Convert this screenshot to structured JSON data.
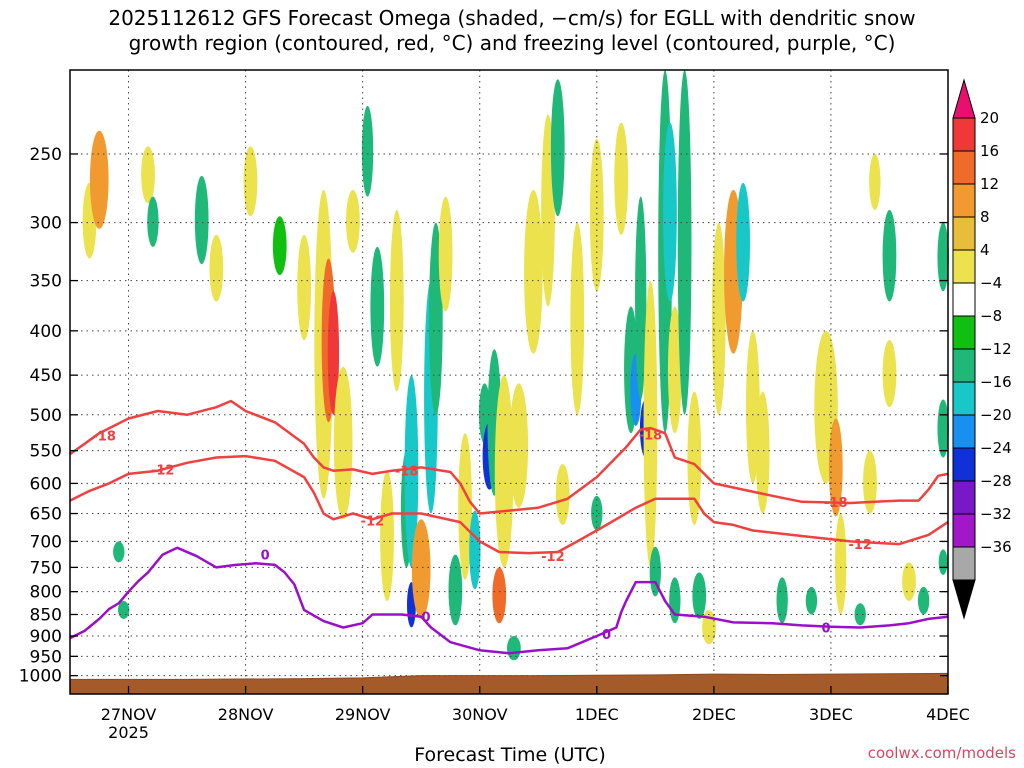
{
  "chart_data": {
    "type": "heatmap",
    "title_line1": "2025112612 GFS Forecast Omega (shaded, −cm/s) for EGLL with dendritic snow",
    "title_line2": "growth region (contoured, red, °C) and freezing level (contoured, purple, °C)",
    "xlabel": "Forecast Time (UTC)",
    "credit": "coolwx.com/models",
    "y_axis": {
      "scale": "pressure (hPa, inverted)",
      "ylim": [
        1050,
        200
      ],
      "ticks": [
        250,
        300,
        350,
        400,
        450,
        500,
        550,
        600,
        650,
        700,
        750,
        800,
        850,
        900,
        950,
        1000
      ]
    },
    "x_axis": {
      "unit": "hours from 2025-11-26 12 UTC",
      "xlim": [
        0,
        180
      ],
      "ticks": [
        {
          "x": 12,
          "label": "27NOV",
          "sub": "2025"
        },
        {
          "x": 36,
          "label": "28NOV",
          "sub": ""
        },
        {
          "x": 60,
          "label": "29NOV",
          "sub": ""
        },
        {
          "x": 84,
          "label": "30NOV",
          "sub": ""
        },
        {
          "x": 108,
          "label": "1DEC",
          "sub": ""
        },
        {
          "x": 132,
          "label": "2DEC",
          "sub": ""
        },
        {
          "x": 156,
          "label": "3DEC",
          "sub": ""
        },
        {
          "x": 180,
          "label": "4DEC",
          "sub": ""
        }
      ]
    },
    "grid": true,
    "colorbar": {
      "labels": [
        "20",
        "16",
        "12",
        "8",
        "4",
        "−4",
        "−8",
        "−12",
        "−16",
        "−20",
        "−24",
        "−28",
        "−32",
        "−36"
      ],
      "colors": [
        "#e8106e",
        "#f03838",
        "#f06a2a",
        "#f09a30",
        "#e8bd3a",
        "#ebe24d",
        "#ffffff",
        "#10c010",
        "#20b878",
        "#18c8c8",
        "#1890f0",
        "#1030d8",
        "#7818c8",
        "#a018c8",
        "#a8a8a8",
        "#000000"
      ]
    },
    "shading_patches": [
      {
        "x": 4,
        "p": 300,
        "w": 2,
        "h": 60,
        "v": 6
      },
      {
        "x": 6,
        "p": 270,
        "w": 3,
        "h": 70,
        "v": 10
      },
      {
        "x": 16,
        "p": 265,
        "w": 2,
        "h": 40,
        "v": 5
      },
      {
        "x": 17,
        "p": 300,
        "w": 1.5,
        "h": 40,
        "v": -8
      },
      {
        "x": 10,
        "p": 720,
        "w": 1.5,
        "h": 40,
        "v": -10
      },
      {
        "x": 11,
        "p": 840,
        "w": 1.5,
        "h": 40,
        "v": -8
      },
      {
        "x": 27,
        "p": 300,
        "w": 2,
        "h": 70,
        "v": -8
      },
      {
        "x": 30,
        "p": 340,
        "w": 2,
        "h": 60,
        "v": 5
      },
      {
        "x": 37,
        "p": 270,
        "w": 2,
        "h": 50,
        "v": 5
      },
      {
        "x": 43,
        "p": 320,
        "w": 2,
        "h": 50,
        "v": -6
      },
      {
        "x": 48,
        "p": 360,
        "w": 2,
        "h": 100,
        "v": 6
      },
      {
        "x": 52,
        "p": 450,
        "w": 3,
        "h": 350,
        "v": 7
      },
      {
        "x": 53,
        "p": 420,
        "w": 2,
        "h": 180,
        "v": 12
      },
      {
        "x": 54,
        "p": 430,
        "w": 1.5,
        "h": 140,
        "v": 16
      },
      {
        "x": 56,
        "p": 550,
        "w": 3,
        "h": 220,
        "v": 6
      },
      {
        "x": 58,
        "p": 300,
        "w": 2,
        "h": 50,
        "v": 5
      },
      {
        "x": 61,
        "p": 250,
        "w": 1.5,
        "h": 60,
        "v": -8
      },
      {
        "x": 63,
        "p": 380,
        "w": 2,
        "h": 120,
        "v": -8
      },
      {
        "x": 65,
        "p": 700,
        "w": 2,
        "h": 240,
        "v": 5
      },
      {
        "x": 67,
        "p": 380,
        "w": 2,
        "h": 180,
        "v": 6
      },
      {
        "x": 69,
        "p": 650,
        "w": 1.5,
        "h": 200,
        "v": -8
      },
      {
        "x": 70,
        "p": 600,
        "w": 2,
        "h": 300,
        "v": -14
      },
      {
        "x": 70,
        "p": 830,
        "w": 1,
        "h": 100,
        "v": -22
      },
      {
        "x": 72,
        "p": 760,
        "w": 3,
        "h": 200,
        "v": 8
      },
      {
        "x": 74,
        "p": 500,
        "w": 2,
        "h": 300,
        "v": -12
      },
      {
        "x": 75,
        "p": 400,
        "w": 2,
        "h": 200,
        "v": -8
      },
      {
        "x": 77,
        "p": 330,
        "w": 2,
        "h": 100,
        "v": 5
      },
      {
        "x": 79,
        "p": 800,
        "w": 2,
        "h": 150,
        "v": -8
      },
      {
        "x": 81,
        "p": 650,
        "w": 2,
        "h": 250,
        "v": 6
      },
      {
        "x": 83,
        "p": 720,
        "w": 1.5,
        "h": 150,
        "v": -14
      },
      {
        "x": 85,
        "p": 500,
        "w": 1.5,
        "h": 80,
        "v": -8
      },
      {
        "x": 86,
        "p": 560,
        "w": 2,
        "h": 100,
        "v": -20
      },
      {
        "x": 87,
        "p": 520,
        "w": 2,
        "h": 200,
        "v": -10
      },
      {
        "x": 89,
        "p": 600,
        "w": 3,
        "h": 300,
        "v": 6
      },
      {
        "x": 88,
        "p": 810,
        "w": 2,
        "h": 120,
        "v": 12
      },
      {
        "x": 91,
        "p": 930,
        "w": 2,
        "h": 60,
        "v": -8
      },
      {
        "x": 92,
        "p": 550,
        "w": 3,
        "h": 180,
        "v": 7
      },
      {
        "x": 95,
        "p": 350,
        "w": 3,
        "h": 150,
        "v": 5
      },
      {
        "x": 98,
        "p": 300,
        "w": 2,
        "h": 150,
        "v": 5
      },
      {
        "x": 100,
        "p": 250,
        "w": 2,
        "h": 90,
        "v": -8
      },
      {
        "x": 101,
        "p": 620,
        "w": 2,
        "h": 100,
        "v": 5
      },
      {
        "x": 104,
        "p": 400,
        "w": 2,
        "h": 200,
        "v": 5
      },
      {
        "x": 108,
        "p": 300,
        "w": 2,
        "h": 120,
        "v": 5
      },
      {
        "x": 108,
        "p": 650,
        "w": 1.5,
        "h": 60,
        "v": -8
      },
      {
        "x": 113,
        "p": 270,
        "w": 2,
        "h": 80,
        "v": 5
      },
      {
        "x": 115,
        "p": 450,
        "w": 2,
        "h": 150,
        "v": -8
      },
      {
        "x": 116,
        "p": 470,
        "w": 1.5,
        "h": 90,
        "v": -18
      },
      {
        "x": 118,
        "p": 520,
        "w": 1.5,
        "h": 80,
        "v": -22
      },
      {
        "x": 117,
        "p": 380,
        "w": 1.5,
        "h": 200,
        "v": -10
      },
      {
        "x": 119,
        "p": 550,
        "w": 2,
        "h": 400,
        "v": 5
      },
      {
        "x": 120,
        "p": 760,
        "w": 1.5,
        "h": 100,
        "v": -8
      },
      {
        "x": 122,
        "p": 350,
        "w": 2,
        "h": 350,
        "v": -10
      },
      {
        "x": 123,
        "p": 300,
        "w": 2,
        "h": 140,
        "v": -14
      },
      {
        "x": 124,
        "p": 450,
        "w": 2,
        "h": 150,
        "v": 5
      },
      {
        "x": 124,
        "p": 820,
        "w": 1.5,
        "h": 100,
        "v": -8
      },
      {
        "x": 126,
        "p": 350,
        "w": 2,
        "h": 300,
        "v": -8
      },
      {
        "x": 128,
        "p": 570,
        "w": 2,
        "h": 200,
        "v": 5
      },
      {
        "x": 129,
        "p": 810,
        "w": 2,
        "h": 100,
        "v": -8
      },
      {
        "x": 131,
        "p": 880,
        "w": 2,
        "h": 80,
        "v": 5
      },
      {
        "x": 133,
        "p": 400,
        "w": 2,
        "h": 200,
        "v": 5
      },
      {
        "x": 136,
        "p": 350,
        "w": 3,
        "h": 150,
        "v": 8
      },
      {
        "x": 138,
        "p": 320,
        "w": 2,
        "h": 100,
        "v": -12
      },
      {
        "x": 140,
        "p": 500,
        "w": 2,
        "h": 200,
        "v": 6
      },
      {
        "x": 142,
        "p": 560,
        "w": 2,
        "h": 180,
        "v": 5
      },
      {
        "x": 146,
        "p": 820,
        "w": 1.5,
        "h": 100,
        "v": -8
      },
      {
        "x": 152,
        "p": 820,
        "w": 1.5,
        "h": 60,
        "v": -8
      },
      {
        "x": 155,
        "p": 500,
        "w": 4,
        "h": 200,
        "v": 5
      },
      {
        "x": 157,
        "p": 580,
        "w": 2,
        "h": 150,
        "v": 8
      },
      {
        "x": 158,
        "p": 750,
        "w": 1.5,
        "h": 200,
        "v": 5
      },
      {
        "x": 162,
        "p": 850,
        "w": 1.5,
        "h": 50,
        "v": -8
      },
      {
        "x": 164,
        "p": 600,
        "w": 2,
        "h": 100,
        "v": 5
      },
      {
        "x": 165,
        "p": 270,
        "w": 1.5,
        "h": 40,
        "v": 5
      },
      {
        "x": 168,
        "p": 330,
        "w": 2,
        "h": 80,
        "v": -8
      },
      {
        "x": 168,
        "p": 450,
        "w": 2,
        "h": 80,
        "v": 5
      },
      {
        "x": 172,
        "p": 780,
        "w": 2,
        "h": 80,
        "v": 5
      },
      {
        "x": 175,
        "p": 820,
        "w": 1.5,
        "h": 60,
        "v": -8
      },
      {
        "x": 179,
        "p": 330,
        "w": 1.5,
        "h": 60,
        "v": -8
      },
      {
        "x": 179,
        "p": 520,
        "w": 1.5,
        "h": 80,
        "v": -8
      },
      {
        "x": 179,
        "p": 740,
        "w": 1,
        "h": 50,
        "v": -8
      }
    ],
    "surface_pressure": [
      [
        0,
        1010
      ],
      [
        24,
        1010
      ],
      [
        48,
        1008
      ],
      [
        60,
        1006
      ],
      [
        72,
        1000
      ],
      [
        96,
        1000
      ],
      [
        120,
        998
      ],
      [
        132,
        996
      ],
      [
        144,
        997
      ],
      [
        168,
        995
      ],
      [
        180,
        994
      ]
    ],
    "contours": [
      {
        "name": "-18",
        "color": "#f04040",
        "labels": [
          {
            "text": "-18",
            "x": 7,
            "p": 528
          },
          {
            "text": "-18",
            "x": 69,
            "p": 580
          },
          {
            "text": "-18",
            "x": 119,
            "p": 527
          },
          {
            "text": "-18",
            "x": 157,
            "p": 630
          }
        ],
        "points": [
          [
            0,
            555
          ],
          [
            3,
            540
          ],
          [
            6,
            525
          ],
          [
            12,
            505
          ],
          [
            18,
            495
          ],
          [
            24,
            500
          ],
          [
            30,
            490
          ],
          [
            33,
            482
          ],
          [
            36,
            495
          ],
          [
            42,
            510
          ],
          [
            48,
            540
          ],
          [
            50,
            560
          ],
          [
            52,
            575
          ],
          [
            54,
            580
          ],
          [
            58,
            578
          ],
          [
            62,
            585
          ],
          [
            66,
            580
          ],
          [
            72,
            575
          ],
          [
            78,
            582
          ],
          [
            80,
            600
          ],
          [
            82,
            630
          ],
          [
            84,
            650
          ],
          [
            90,
            645
          ],
          [
            96,
            640
          ],
          [
            102,
            625
          ],
          [
            108,
            590
          ],
          [
            114,
            545
          ],
          [
            117,
            520
          ],
          [
            119,
            518
          ],
          [
            122,
            525
          ],
          [
            124,
            560
          ],
          [
            128,
            570
          ],
          [
            132,
            600
          ],
          [
            138,
            610
          ],
          [
            144,
            620
          ],
          [
            150,
            630
          ],
          [
            160,
            632
          ],
          [
            170,
            628
          ],
          [
            174,
            628
          ],
          [
            176,
            610
          ],
          [
            178,
            588
          ],
          [
            180,
            585
          ]
        ]
      },
      {
        "name": "-12",
        "color": "#f04040",
        "labels": [
          {
            "text": "-12",
            "x": 19,
            "p": 578
          },
          {
            "text": "-12",
            "x": 62,
            "p": 662
          },
          {
            "text": "-12",
            "x": 99,
            "p": 728
          },
          {
            "text": "-12",
            "x": 162,
            "p": 705
          }
        ],
        "points": [
          [
            0,
            628
          ],
          [
            4,
            612
          ],
          [
            8,
            600
          ],
          [
            12,
            585
          ],
          [
            18,
            580
          ],
          [
            24,
            568
          ],
          [
            30,
            560
          ],
          [
            36,
            558
          ],
          [
            42,
            565
          ],
          [
            48,
            590
          ],
          [
            50,
            615
          ],
          [
            52,
            650
          ],
          [
            54,
            660
          ],
          [
            58,
            650
          ],
          [
            62,
            660
          ],
          [
            66,
            650
          ],
          [
            72,
            650
          ],
          [
            80,
            665
          ],
          [
            84,
            700
          ],
          [
            88,
            720
          ],
          [
            94,
            722
          ],
          [
            100,
            720
          ],
          [
            104,
            700
          ],
          [
            110,
            670
          ],
          [
            116,
            640
          ],
          [
            120,
            625
          ],
          [
            128,
            625
          ],
          [
            130,
            650
          ],
          [
            132,
            665
          ],
          [
            136,
            670
          ],
          [
            140,
            680
          ],
          [
            150,
            690
          ],
          [
            160,
            700
          ],
          [
            170,
            705
          ],
          [
            176,
            688
          ],
          [
            180,
            665
          ]
        ]
      },
      {
        "name": "0",
        "color": "#9a10c8",
        "labels": [
          {
            "text": "0",
            "x": 40,
            "p": 725
          },
          {
            "text": "0",
            "x": 73,
            "p": 855
          },
          {
            "text": "0",
            "x": 110,
            "p": 895
          },
          {
            "text": "0",
            "x": 155,
            "p": 880
          }
        ],
        "points": [
          [
            0,
            905
          ],
          [
            3,
            888
          ],
          [
            6,
            860
          ],
          [
            8,
            838
          ],
          [
            10,
            825
          ],
          [
            12,
            800
          ],
          [
            14,
            778
          ],
          [
            16,
            760
          ],
          [
            19,
            725
          ],
          [
            22,
            712
          ],
          [
            26,
            728
          ],
          [
            30,
            750
          ],
          [
            34,
            745
          ],
          [
            38,
            742
          ],
          [
            42,
            745
          ],
          [
            44,
            760
          ],
          [
            46,
            785
          ],
          [
            48,
            840
          ],
          [
            52,
            865
          ],
          [
            56,
            880
          ],
          [
            60,
            870
          ],
          [
            62,
            850
          ],
          [
            68,
            850
          ],
          [
            72,
            855
          ],
          [
            74,
            880
          ],
          [
            78,
            915
          ],
          [
            84,
            935
          ],
          [
            90,
            942
          ],
          [
            96,
            935
          ],
          [
            102,
            930
          ],
          [
            108,
            900
          ],
          [
            112,
            880
          ],
          [
            113,
            845
          ],
          [
            114,
            820
          ],
          [
            116,
            780
          ],
          [
            120,
            780
          ],
          [
            122,
            820
          ],
          [
            124,
            850
          ],
          [
            130,
            855
          ],
          [
            136,
            868
          ],
          [
            144,
            870
          ],
          [
            150,
            875
          ],
          [
            156,
            878
          ],
          [
            162,
            880
          ],
          [
            168,
            875
          ],
          [
            172,
            870
          ],
          [
            176,
            860
          ],
          [
            180,
            855
          ]
        ]
      }
    ]
  }
}
